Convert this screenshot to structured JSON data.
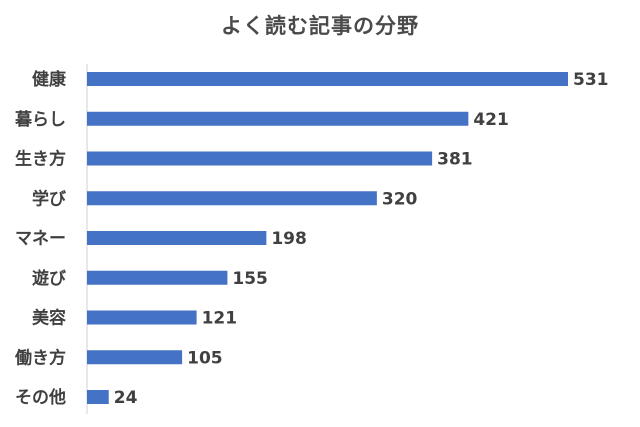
{
  "chart_data": {
    "type": "bar",
    "orientation": "horizontal",
    "title": "よく読む記事の分野",
    "xlabel": "",
    "ylabel": "",
    "categories": [
      "健康",
      "暮らし",
      "生き方",
      "学び",
      "マネー",
      "遊び",
      "美容",
      "働き方",
      "その他"
    ],
    "values": [
      531,
      421,
      381,
      320,
      198,
      155,
      121,
      105,
      24
    ],
    "xlim": [
      0,
      531
    ],
    "grid": false,
    "legend": "none",
    "data_labels": true,
    "bar_color": "#4472c4"
  }
}
